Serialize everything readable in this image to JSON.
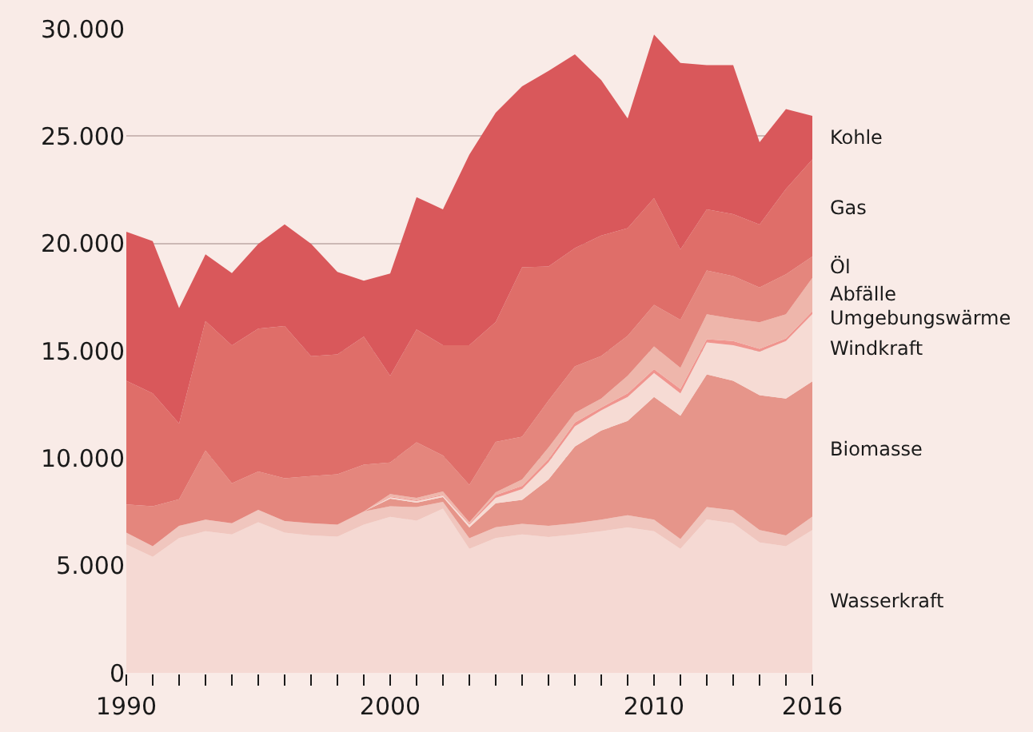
{
  "chart_data": {
    "type": "area",
    "stacked": true,
    "legend": false,
    "grid": "y",
    "x": [
      1990,
      1991,
      1992,
      1993,
      1994,
      1995,
      1996,
      1997,
      1998,
      1999,
      2000,
      2001,
      2002,
      2003,
      2004,
      2005,
      2006,
      2007,
      2008,
      2009,
      2010,
      2011,
      2012,
      2013,
      2014,
      2015,
      2016
    ],
    "xlim": [
      1990,
      2016
    ],
    "xticks": [
      1990,
      {
        "value": 1991,
        "label": null
      },
      {
        "value": 1992,
        "label": null
      },
      {
        "value": 1993,
        "label": null
      },
      {
        "value": 1994,
        "label": null
      },
      {
        "value": 1995,
        "label": null
      },
      {
        "value": 1996,
        "label": null
      },
      {
        "value": 1997,
        "label": null
      },
      {
        "value": 1998,
        "label": null
      },
      {
        "value": 1999,
        "label": null
      },
      2000,
      {
        "value": 2001,
        "label": null
      },
      {
        "value": 2002,
        "label": null
      },
      {
        "value": 2003,
        "label": null
      },
      {
        "value": 2004,
        "label": null
      },
      {
        "value": 2005,
        "label": null
      },
      {
        "value": 2006,
        "label": null
      },
      {
        "value": 2007,
        "label": null
      },
      {
        "value": 2008,
        "label": null
      },
      {
        "value": 2009,
        "label": null
      },
      2010,
      {
        "value": 2011,
        "label": null
      },
      {
        "value": 2012,
        "label": null
      },
      {
        "value": 2013,
        "label": null
      },
      {
        "value": 2014,
        "label": null
      },
      {
        "value": 2015,
        "label": null
      },
      2016
    ],
    "ylim": [
      0,
      30000
    ],
    "yticks": [
      0,
      {
        "value": 5000,
        "label": "5.000"
      },
      {
        "value": 10000,
        "label": "10.000"
      },
      {
        "value": 15000,
        "label": "15.000"
      },
      {
        "value": 20000,
        "label": "20.000"
      },
      {
        "value": 25000,
        "label": "25.000"
      },
      {
        "value": 30000,
        "label": "30.000"
      }
    ],
    "series": [
      {
        "name": "Wasserkraft",
        "color": "#f5d9d3",
        "values": [
          5980,
          5410,
          6280,
          6600,
          6450,
          7020,
          6530,
          6400,
          6350,
          6900,
          7270,
          7090,
          7650,
          5780,
          6280,
          6450,
          6330,
          6450,
          6600,
          6770,
          6600,
          5780,
          7150,
          6970,
          6080,
          5900,
          6650
        ]
      },
      {
        "color": "#f0c6be",
        "values": [
          550,
          490,
          570,
          540,
          520,
          570,
          540,
          570,
          550,
          620,
          490,
          630,
          320,
          490,
          500,
          490,
          520,
          520,
          540,
          570,
          540,
          450,
          570,
          600,
          570,
          500,
          630
        ]
      },
      {
        "name": "Biomasse",
        "color": "#e6958a",
        "values": [
          0,
          0,
          0,
          0,
          0,
          0,
          0,
          0,
          0,
          0,
          350,
          210,
          220,
          500,
          1120,
          1120,
          2160,
          3570,
          4150,
          4390,
          5710,
          5750,
          6180,
          6030,
          6280,
          6380,
          6300
        ]
      },
      {
        "name": "Windkraft",
        "color": "#f6dbd4",
        "values": [
          0,
          0,
          0,
          0,
          0,
          0,
          0,
          0,
          0,
          0,
          70,
          70,
          70,
          130,
          250,
          500,
          800,
          940,
          940,
          1120,
          1120,
          1040,
          1490,
          1660,
          2030,
          2680,
          3130
        ]
      },
      {
        "name": "Umgebungswärme",
        "color": "#f0948e",
        "values": [
          0,
          0,
          0,
          0,
          0,
          0,
          0,
          0,
          0,
          0,
          40,
          40,
          40,
          50,
          130,
          150,
          150,
          180,
          130,
          170,
          170,
          200,
          150,
          200,
          130,
          120,
          130
        ]
      },
      {
        "name": "Abfälle",
        "color": "#eeb6ab",
        "values": [
          0,
          0,
          0,
          0,
          0,
          0,
          0,
          0,
          0,
          0,
          110,
          110,
          150,
          70,
          130,
          300,
          540,
          450,
          420,
          820,
          1060,
          990,
          1160,
          1040,
          1240,
          1120,
          1560
        ]
      },
      {
        "name": "Öl",
        "color": "#e4867d",
        "values": [
          1310,
          1860,
          1240,
          3220,
          1860,
          1790,
          1990,
          2200,
          2350,
          2180,
          1470,
          2590,
          1670,
          1740,
          2350,
          1990,
          2180,
          2160,
          1980,
          1860,
          1940,
          2230,
          2040,
          1980,
          1620,
          1860,
          990
        ]
      },
      {
        "name": "Gas",
        "color": "#df6e69",
        "values": [
          5760,
          5260,
          3520,
          6030,
          6420,
          6650,
          7090,
          5580,
          5580,
          5960,
          4040,
          5260,
          5140,
          6500,
          5580,
          7890,
          6250,
          5510,
          5610,
          5010,
          4970,
          3280,
          2850,
          2880,
          2930,
          3980,
          4520
        ]
      },
      {
        "name": "Kohle",
        "color": "#d9585b",
        "values": [
          6950,
          7090,
          5380,
          3100,
          3370,
          3950,
          4740,
          5240,
          3850,
          2610,
          4760,
          6160,
          6330,
          8880,
          9750,
          8430,
          9110,
          9030,
          7240,
          5110,
          7620,
          8690,
          6720,
          6950,
          3830,
          3720,
          2030
        ]
      }
    ]
  }
}
